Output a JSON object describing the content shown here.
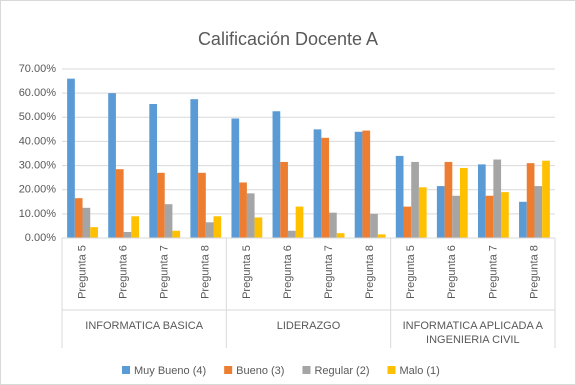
{
  "chart_data": {
    "type": "bar",
    "title": "Calificación Docente A",
    "categories": [
      "Pregunta 5",
      "Pregunta 6",
      "Pregunta 7",
      "Pregunta 8",
      "Pregunta 5",
      "Pregunta 6",
      "Pregunta 7",
      "Pregunta 8",
      "Pregunta 5",
      "Pregunta 6",
      "Pregunta 7",
      "Pregunta 8"
    ],
    "groups": [
      "INFORMATICA BASICA",
      "LIDERAZGO",
      "INFORMATICA APLICADA A INGENIERIA CIVIL"
    ],
    "series": [
      {
        "name": "Muy Bueno (4)",
        "color": "#5b9bd5",
        "values": [
          66,
          60,
          55.5,
          57.5,
          49.5,
          52.5,
          45,
          44,
          34,
          21.5,
          30.5,
          15
        ]
      },
      {
        "name": "Bueno (3)",
        "color": "#ed7d31",
        "values": [
          16.5,
          28.5,
          27,
          27,
          23,
          31.5,
          41.5,
          44.5,
          13,
          31.5,
          17.5,
          31
        ]
      },
      {
        "name": "Regular (2)",
        "color": "#a5a5a5",
        "values": [
          12.5,
          2.5,
          14,
          6.5,
          18.5,
          3,
          10.5,
          10,
          31.5,
          17.5,
          32.5,
          21.5
        ]
      },
      {
        "name": "Malo (1)",
        "color": "#ffc000",
        "values": [
          4.5,
          9,
          3,
          9,
          8.5,
          13,
          2,
          1.5,
          21,
          29,
          19,
          32
        ]
      }
    ],
    "ylim": [
      0,
      70
    ],
    "yticks": [
      {
        "value": 0,
        "label": "0.00%"
      },
      {
        "value": 10,
        "label": "10.00%"
      },
      {
        "value": 20,
        "label": "20.00%"
      },
      {
        "value": 30,
        "label": "30.00%"
      },
      {
        "value": 40,
        "label": "40.00%"
      },
      {
        "value": 50,
        "label": "50.00%"
      },
      {
        "value": 60,
        "label": "60.00%"
      },
      {
        "value": 70,
        "label": "70.00%"
      }
    ],
    "grid": true
  }
}
